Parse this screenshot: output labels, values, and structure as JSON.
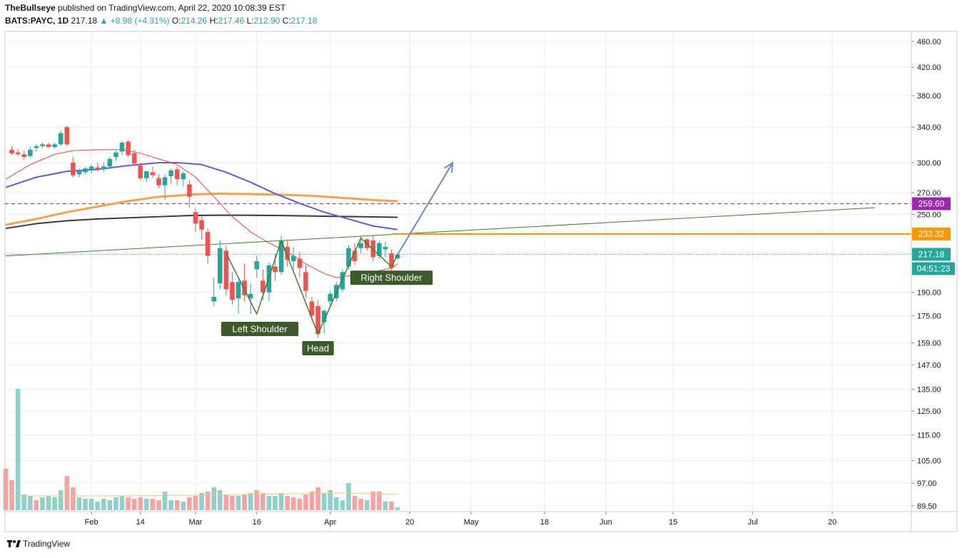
{
  "header": {
    "author": "TheBullseye",
    "published": "published on TradingView.com, April 22, 2020 10:08:39 EST",
    "symbol": "BATS:PAYC, 1D",
    "last": "217.18",
    "change": "+8.98 (+4.31%)",
    "o_label": "O:",
    "o": "214.26",
    "h_label": "H:",
    "h": "217.46",
    "l_label": "L:",
    "l": "212.90",
    "c_label": "C:",
    "c": "217.18"
  },
  "footer": {
    "brand": "TradingView"
  },
  "chart_data": {
    "type": "candlestick",
    "scale": "log",
    "ylim": [
      89.5,
      460
    ],
    "y_ticks": [
      460,
      420,
      380,
      340,
      300,
      270,
      250,
      190,
      175,
      159,
      147,
      135,
      125,
      115,
      105,
      97,
      89.5
    ],
    "y_tick_labels": [
      "460.00",
      "420.00",
      "380.00",
      "340.00",
      "300.00",
      "270.00",
      "250.00",
      "190.00",
      "175.00",
      "159.00",
      "147.00",
      "135.00",
      "125.00",
      "115.00",
      "105.00",
      "97.00",
      "89.50"
    ],
    "x_ticks": [
      {
        "label": "Feb",
        "i": 14
      },
      {
        "label": "14",
        "i": 22
      },
      {
        "label": "Mar",
        "i": 31
      },
      {
        "label": "16",
        "i": 41
      },
      {
        "label": "Apr",
        "i": 53
      },
      {
        "label": "20",
        "i": 66
      },
      {
        "label": "May",
        "i": 76
      },
      {
        "label": "18",
        "i": 88
      },
      {
        "label": "Jun",
        "i": 98
      },
      {
        "label": "15",
        "i": 109
      },
      {
        "label": "Jul",
        "i": 122
      },
      {
        "label": "20",
        "i": 135
      }
    ],
    "candles": [
      {
        "i": 1,
        "o": 314,
        "h": 318,
        "l": 308,
        "c": 310
      },
      {
        "i": 2,
        "o": 311,
        "h": 315,
        "l": 307,
        "c": 309
      },
      {
        "i": 3,
        "o": 309,
        "h": 313,
        "l": 303,
        "c": 306
      },
      {
        "i": 4,
        "o": 307,
        "h": 318,
        "l": 305,
        "c": 314
      },
      {
        "i": 5,
        "o": 316,
        "h": 320,
        "l": 312,
        "c": 318
      },
      {
        "i": 6,
        "o": 318,
        "h": 322,
        "l": 316,
        "c": 320
      },
      {
        "i": 7,
        "o": 320,
        "h": 322,
        "l": 316,
        "c": 317
      },
      {
        "i": 8,
        "o": 317,
        "h": 322,
        "l": 315,
        "c": 320
      },
      {
        "i": 9,
        "o": 320,
        "h": 336,
        "l": 318,
        "c": 333
      },
      {
        "i": 10,
        "o": 340,
        "h": 342,
        "l": 318,
        "c": 320
      },
      {
        "i": 11,
        "o": 300,
        "h": 306,
        "l": 285,
        "c": 287
      },
      {
        "i": 12,
        "o": 288,
        "h": 294,
        "l": 285,
        "c": 291
      },
      {
        "i": 13,
        "o": 290,
        "h": 296,
        "l": 288,
        "c": 294
      },
      {
        "i": 14,
        "o": 292,
        "h": 298,
        "l": 289,
        "c": 296
      },
      {
        "i": 15,
        "o": 295,
        "h": 300,
        "l": 291,
        "c": 293
      },
      {
        "i": 16,
        "o": 293,
        "h": 300,
        "l": 290,
        "c": 296
      },
      {
        "i": 17,
        "o": 296,
        "h": 306,
        "l": 294,
        "c": 304
      },
      {
        "i": 18,
        "o": 306,
        "h": 313,
        "l": 302,
        "c": 311
      },
      {
        "i": 19,
        "o": 312,
        "h": 324,
        "l": 308,
        "c": 322
      },
      {
        "i": 20,
        "o": 323,
        "h": 325,
        "l": 306,
        "c": 308
      },
      {
        "i": 21,
        "o": 310,
        "h": 314,
        "l": 297,
        "c": 299
      },
      {
        "i": 22,
        "o": 297,
        "h": 300,
        "l": 282,
        "c": 284
      },
      {
        "i": 23,
        "o": 284,
        "h": 292,
        "l": 280,
        "c": 291
      },
      {
        "i": 24,
        "o": 290,
        "h": 296,
        "l": 284,
        "c": 287
      },
      {
        "i": 25,
        "o": 284,
        "h": 288,
        "l": 274,
        "c": 277
      },
      {
        "i": 26,
        "o": 277,
        "h": 288,
        "l": 263,
        "c": 285
      },
      {
        "i": 27,
        "o": 286,
        "h": 294,
        "l": 278,
        "c": 292
      },
      {
        "i": 28,
        "o": 293,
        "h": 296,
        "l": 277,
        "c": 283
      },
      {
        "i": 29,
        "o": 283,
        "h": 291,
        "l": 276,
        "c": 289
      },
      {
        "i": 30,
        "o": 278,
        "h": 282,
        "l": 256,
        "c": 266
      },
      {
        "i": 31,
        "o": 252,
        "h": 256,
        "l": 235,
        "c": 242
      },
      {
        "i": 32,
        "o": 245,
        "h": 248,
        "l": 229,
        "c": 237
      },
      {
        "i": 33,
        "o": 235,
        "h": 238,
        "l": 210,
        "c": 216
      },
      {
        "i": 34,
        "o": 184,
        "h": 200,
        "l": 181,
        "c": 187
      },
      {
        "i": 35,
        "o": 196,
        "h": 228,
        "l": 192,
        "c": 222
      },
      {
        "i": 36,
        "o": 220,
        "h": 224,
        "l": 188,
        "c": 192
      },
      {
        "i": 37,
        "o": 197,
        "h": 204,
        "l": 182,
        "c": 185
      },
      {
        "i": 38,
        "o": 186,
        "h": 199,
        "l": 176,
        "c": 197
      },
      {
        "i": 39,
        "o": 198,
        "h": 210,
        "l": 184,
        "c": 188
      },
      {
        "i": 40,
        "o": 186,
        "h": 196,
        "l": 176,
        "c": 189
      },
      {
        "i": 41,
        "o": 206,
        "h": 216,
        "l": 200,
        "c": 212
      },
      {
        "i": 42,
        "o": 198,
        "h": 206,
        "l": 185,
        "c": 190
      },
      {
        "i": 43,
        "o": 190,
        "h": 211,
        "l": 184,
        "c": 209
      },
      {
        "i": 44,
        "o": 208,
        "h": 218,
        "l": 198,
        "c": 204
      },
      {
        "i": 45,
        "o": 204,
        "h": 232,
        "l": 202,
        "c": 228
      },
      {
        "i": 46,
        "o": 223,
        "h": 229,
        "l": 208,
        "c": 213
      },
      {
        "i": 47,
        "o": 212,
        "h": 223,
        "l": 206,
        "c": 216
      },
      {
        "i": 48,
        "o": 214,
        "h": 219,
        "l": 200,
        "c": 207
      },
      {
        "i": 49,
        "o": 204,
        "h": 209,
        "l": 186,
        "c": 191
      },
      {
        "i": 50,
        "o": 184,
        "h": 187,
        "l": 172,
        "c": 175
      },
      {
        "i": 51,
        "o": 181,
        "h": 185,
        "l": 162,
        "c": 164
      },
      {
        "i": 52,
        "o": 171,
        "h": 179,
        "l": 164,
        "c": 178
      },
      {
        "i": 53,
        "o": 184,
        "h": 191,
        "l": 180,
        "c": 189
      },
      {
        "i": 54,
        "o": 186,
        "h": 197,
        "l": 184,
        "c": 195
      },
      {
        "i": 55,
        "o": 192,
        "h": 206,
        "l": 190,
        "c": 204
      },
      {
        "i": 56,
        "o": 208,
        "h": 224,
        "l": 206,
        "c": 222
      },
      {
        "i": 57,
        "o": 220,
        "h": 226,
        "l": 209,
        "c": 212
      },
      {
        "i": 58,
        "o": 222,
        "h": 232,
        "l": 218,
        "c": 226
      },
      {
        "i": 59,
        "o": 229,
        "h": 230,
        "l": 220,
        "c": 222
      },
      {
        "i": 60,
        "o": 228,
        "h": 232,
        "l": 212,
        "c": 215
      },
      {
        "i": 61,
        "o": 216,
        "h": 228,
        "l": 214,
        "c": 226
      },
      {
        "i": 62,
        "o": 221,
        "h": 227,
        "l": 215,
        "c": 223
      },
      {
        "i": 63,
        "o": 218,
        "h": 221,
        "l": 203,
        "c": 207
      },
      {
        "i": 64,
        "o": 214,
        "h": 217,
        "l": 213,
        "c": 217
      }
    ],
    "volume": [
      {
        "i": 0,
        "v": 58,
        "d": 0
      },
      {
        "i": 1,
        "v": 42,
        "d": 0
      },
      {
        "i": 2,
        "v": 170,
        "d": 1
      },
      {
        "i": 3,
        "v": 22,
        "d": 1
      },
      {
        "i": 4,
        "v": 20,
        "d": 1
      },
      {
        "i": 5,
        "v": 14,
        "d": 0
      },
      {
        "i": 6,
        "v": 18,
        "d": 1
      },
      {
        "i": 7,
        "v": 20,
        "d": 1
      },
      {
        "i": 8,
        "v": 18,
        "d": 1
      },
      {
        "i": 9,
        "v": 28,
        "d": 1
      },
      {
        "i": 10,
        "v": 48,
        "d": 0
      },
      {
        "i": 11,
        "v": 32,
        "d": 0
      },
      {
        "i": 12,
        "v": 18,
        "d": 1
      },
      {
        "i": 13,
        "v": 16,
        "d": 1
      },
      {
        "i": 14,
        "v": 16,
        "d": 1
      },
      {
        "i": 15,
        "v": 12,
        "d": 1
      },
      {
        "i": 16,
        "v": 16,
        "d": 1
      },
      {
        "i": 17,
        "v": 14,
        "d": 1
      },
      {
        "i": 18,
        "v": 18,
        "d": 1
      },
      {
        "i": 19,
        "v": 20,
        "d": 1
      },
      {
        "i": 20,
        "v": 18,
        "d": 0
      },
      {
        "i": 21,
        "v": 16,
        "d": 0
      },
      {
        "i": 22,
        "v": 18,
        "d": 0
      },
      {
        "i": 23,
        "v": 16,
        "d": 1
      },
      {
        "i": 24,
        "v": 16,
        "d": 0
      },
      {
        "i": 25,
        "v": 14,
        "d": 0
      },
      {
        "i": 26,
        "v": 26,
        "d": 1
      },
      {
        "i": 27,
        "v": 14,
        "d": 1
      },
      {
        "i": 28,
        "v": 14,
        "d": 0
      },
      {
        "i": 29,
        "v": 12,
        "d": 1
      },
      {
        "i": 30,
        "v": 18,
        "d": 0
      },
      {
        "i": 31,
        "v": 20,
        "d": 0
      },
      {
        "i": 32,
        "v": 24,
        "d": 1
      },
      {
        "i": 33,
        "v": 26,
        "d": 0
      },
      {
        "i": 34,
        "v": 32,
        "d": 1
      },
      {
        "i": 35,
        "v": 28,
        "d": 1
      },
      {
        "i": 36,
        "v": 22,
        "d": 0
      },
      {
        "i": 37,
        "v": 20,
        "d": 0
      },
      {
        "i": 38,
        "v": 20,
        "d": 1
      },
      {
        "i": 39,
        "v": 22,
        "d": 0
      },
      {
        "i": 40,
        "v": 24,
        "d": 1
      },
      {
        "i": 41,
        "v": 28,
        "d": 0
      },
      {
        "i": 42,
        "v": 24,
        "d": 0
      },
      {
        "i": 43,
        "v": 20,
        "d": 1
      },
      {
        "i": 44,
        "v": 20,
        "d": 1
      },
      {
        "i": 45,
        "v": 24,
        "d": 1
      },
      {
        "i": 46,
        "v": 20,
        "d": 0
      },
      {
        "i": 47,
        "v": 18,
        "d": 0
      },
      {
        "i": 48,
        "v": 16,
        "d": 0
      },
      {
        "i": 49,
        "v": 22,
        "d": 0
      },
      {
        "i": 50,
        "v": 26,
        "d": 0
      },
      {
        "i": 51,
        "v": 32,
        "d": 0
      },
      {
        "i": 52,
        "v": 24,
        "d": 1
      },
      {
        "i": 53,
        "v": 28,
        "d": 1
      },
      {
        "i": 54,
        "v": 18,
        "d": 1
      },
      {
        "i": 55,
        "v": 14,
        "d": 1
      },
      {
        "i": 56,
        "v": 38,
        "d": 1
      },
      {
        "i": 57,
        "v": 20,
        "d": 0
      },
      {
        "i": 58,
        "v": 16,
        "d": 0
      },
      {
        "i": 59,
        "v": 14,
        "d": 1
      },
      {
        "i": 60,
        "v": 26,
        "d": 0
      },
      {
        "i": 61,
        "v": 26,
        "d": 0
      },
      {
        "i": 62,
        "v": 12,
        "d": 1
      },
      {
        "i": 63,
        "v": 12,
        "d": 0
      },
      {
        "i": 64,
        "v": 4,
        "d": 1
      }
    ],
    "ma_red": [
      [
        0,
        283
      ],
      [
        4,
        298
      ],
      [
        8,
        309
      ],
      [
        11,
        313
      ],
      [
        15,
        314
      ],
      [
        19,
        314
      ],
      [
        22,
        310
      ],
      [
        25,
        304
      ],
      [
        28,
        298
      ],
      [
        31,
        285
      ],
      [
        34,
        266
      ],
      [
        37,
        248
      ],
      [
        40,
        235
      ],
      [
        43,
        226
      ],
      [
        46,
        219
      ],
      [
        49,
        210
      ],
      [
        52,
        203
      ],
      [
        54,
        200
      ],
      [
        57,
        202
      ],
      [
        60,
        204
      ],
      [
        63,
        207
      ],
      [
        64,
        210
      ]
    ],
    "ma_blue": [
      [
        0,
        275
      ],
      [
        5,
        285
      ],
      [
        10,
        291
      ],
      [
        15,
        293
      ],
      [
        20,
        297
      ],
      [
        25,
        300
      ],
      [
        28,
        300
      ],
      [
        32,
        298
      ],
      [
        36,
        290
      ],
      [
        40,
        280
      ],
      [
        44,
        269
      ],
      [
        48,
        260
      ],
      [
        52,
        252
      ],
      [
        56,
        246
      ],
      [
        60,
        240
      ],
      [
        64,
        237
      ]
    ],
    "ma_orange": [
      [
        0,
        241
      ],
      [
        5,
        246
      ],
      [
        10,
        252
      ],
      [
        15,
        257
      ],
      [
        20,
        262
      ],
      [
        25,
        266
      ],
      [
        30,
        268
      ],
      [
        35,
        269
      ],
      [
        40,
        268.5
      ],
      [
        45,
        268
      ],
      [
        50,
        267
      ],
      [
        55,
        265
      ],
      [
        60,
        263
      ],
      [
        64,
        262
      ]
    ],
    "ma_black": [
      [
        0,
        238
      ],
      [
        5,
        242
      ],
      [
        10,
        244.5
      ],
      [
        15,
        246
      ],
      [
        20,
        247
      ],
      [
        25,
        248
      ],
      [
        30,
        249
      ],
      [
        35,
        249.3
      ],
      [
        40,
        249.2
      ],
      [
        45,
        249
      ],
      [
        50,
        248.6
      ],
      [
        55,
        248.2
      ],
      [
        60,
        247.8
      ],
      [
        64,
        247.5
      ]
    ],
    "trendline": [
      [
        0,
        216
      ],
      [
        142,
        256
      ]
    ],
    "resistance": 233.32,
    "dashed_level": 259.6,
    "last_price": 217.18,
    "hs_path": [
      [
        36,
        218
      ],
      [
        41,
        176
      ],
      [
        45,
        228
      ],
      [
        51,
        164
      ],
      [
        58,
        230
      ],
      [
        63,
        208
      ],
      [
        64,
        217
      ]
    ],
    "forecast_arrow": [
      [
        64,
        217
      ],
      [
        73,
        300
      ]
    ],
    "annotations": [
      {
        "text": "Left Shoulder",
        "i": 41.5,
        "y": 167
      },
      {
        "text": "Head",
        "i": 51,
        "y": 156
      },
      {
        "text": "Right Shoulder",
        "i": 63,
        "y": 200
      }
    ],
    "price_labels": [
      {
        "text": "259.60",
        "value": 259.6,
        "color": "#9c27b0"
      },
      {
        "text": "233.32",
        "value": 233.32,
        "color": "#ff9800"
      },
      {
        "text": "217.18",
        "value": 217.18,
        "color": "#26a69a"
      }
    ],
    "countdown": "04:51:23",
    "colors": {
      "up": "#26a69a",
      "down": "#ef5350",
      "vol_up": "#8fd0c9",
      "vol_down": "#f5a3a1",
      "grid": "#e8ecef",
      "ma_red": "#f44336",
      "ma_blue": "#5b5fde",
      "ma_orange": "#f6a24e",
      "ma_black": "#3a3a3a",
      "trend": "#3f7f2a",
      "label_bg": "#3d5a2a",
      "arrow": "#6d8cc7"
    }
  }
}
